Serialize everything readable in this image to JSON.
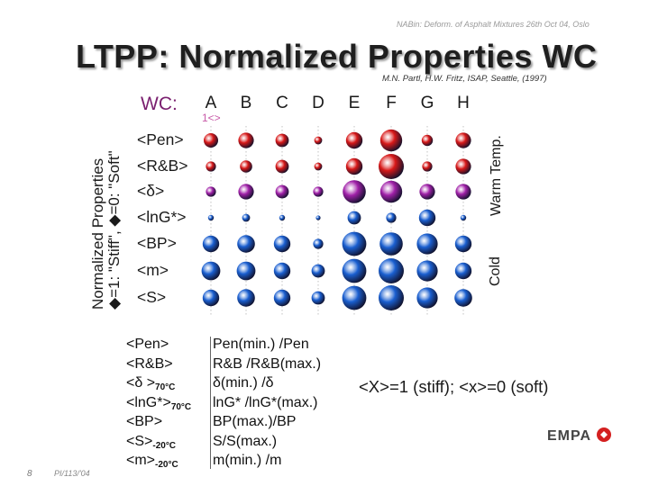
{
  "header": {
    "conference": "NABin: Deform. of Asphalt Mixtures 26th Oct 04, Oslo",
    "title": "LTPP: Normalized Properties WC",
    "reference": "M.N. Partl, H.W. Fritz, ISAP, Seattle, (1997)"
  },
  "axis": {
    "left_label_line1": "Normalized Properties",
    "left_label_line2": "◆=1: \"Stiff\",  ◆=0: \"Soft\"",
    "warm_label": "Warm Temp.",
    "cold_label": "Cold"
  },
  "grid": {
    "wc_label": "WC:",
    "wc_tag": "1<>",
    "columns": [
      "A",
      "B",
      "C",
      "D",
      "E",
      "F",
      "G",
      "H"
    ],
    "rows": [
      "<Pen>",
      "<R&B>",
      "<δ>",
      "<lnG*>",
      "<BP>",
      "<m>",
      "<S>"
    ],
    "row_colors": [
      "#d81818",
      "#d81818",
      "#a020a8",
      "#1a5fd0",
      "#1a5fd0",
      "#1a5fd0",
      "#1a5fd0"
    ],
    "values": [
      [
        0.5,
        0.55,
        0.45,
        0.2,
        0.6,
        0.85,
        0.35,
        0.55
      ],
      [
        0.3,
        0.4,
        0.45,
        0.2,
        0.6,
        1.0,
        0.3,
        0.55
      ],
      [
        0.3,
        0.55,
        0.45,
        0.3,
        0.9,
        0.85,
        0.55,
        0.55
      ],
      [
        0.1,
        0.2,
        0.1,
        0.05,
        0.45,
        0.3,
        0.6,
        0.1
      ],
      [
        0.6,
        0.65,
        0.6,
        0.3,
        0.95,
        0.9,
        0.8,
        0.6
      ],
      [
        0.7,
        0.7,
        0.6,
        0.45,
        0.95,
        1.0,
        0.8,
        0.6
      ],
      [
        0.6,
        0.65,
        0.6,
        0.45,
        0.95,
        1.0,
        0.8,
        0.65
      ]
    ]
  },
  "legend": {
    "keys": [
      {
        "text": "<Pen>",
        "sub": ""
      },
      {
        "text": "<R&B>",
        "sub": ""
      },
      {
        "text": "<δ >",
        "sub": "70°C"
      },
      {
        "text": "<lnG*>",
        "sub": "70°C"
      },
      {
        "text": "<BP>",
        "sub": ""
      },
      {
        "text": "<S>",
        "sub": "-20°C"
      },
      {
        "text": "<m>",
        "sub": "-20°C"
      }
    ],
    "values": [
      "Pen(min.) /Pen",
      "R&B /R&B(max.)",
      "δ(min.) /δ",
      "lnG* /lnG*(max.)",
      "BP(max.)/BP",
      "S/S(max.)",
      "m(min.) /m"
    ]
  },
  "formula": "<X>=1 (stiff); <x>=0 (soft)",
  "logo": "EMPA",
  "footer": {
    "page": "8",
    "date": "PI/113/'04"
  }
}
